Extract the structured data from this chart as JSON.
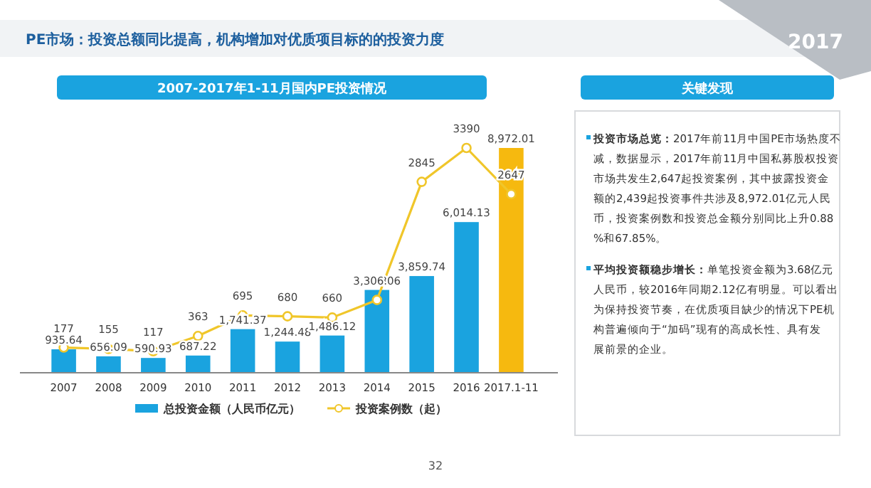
{
  "chart_data": [
    {
      "type": "bar",
      "title": "2007-2017年1-11月国内PE投资情况",
      "categories": [
        "2007",
        "2008",
        "2009",
        "2010",
        "2011",
        "2012",
        "2013",
        "2014",
        "2015",
        "2016",
        "2017.1-11"
      ],
      "series": [
        {
          "name": "总投资金额（人民币亿元）",
          "type": "bar",
          "colors": [
            "#1aa3df",
            "#1aa3df",
            "#1aa3df",
            "#1aa3df",
            "#1aa3df",
            "#1aa3df",
            "#1aa3df",
            "#1aa3df",
            "#1aa3df",
            "#1aa3df",
            "#f6b90f"
          ],
          "values": [
            935.64,
            656.09,
            590.93,
            687.22,
            1741.37,
            1244.48,
            1486.12,
            3306.06,
            3859.74,
            6014.13,
            8972.01
          ],
          "value_labels": [
            "935.64",
            "656.09",
            "590.93",
            "687.22",
            "1,741.37",
            "1,244.48",
            "1,486.12",
            "3,306.06",
            "3,859.74",
            "6,014.13",
            "8,972.01"
          ]
        },
        {
          "name": "投资案例数（起）",
          "type": "line",
          "axis": "y2",
          "color": "#f0c62a",
          "marker": "circle",
          "values": [
            177,
            155,
            117,
            363,
            695,
            680,
            660,
            943,
            2845,
            3390,
            2647
          ]
        }
      ],
      "data_labels": true,
      "legend": "bottom",
      "annotations": [
        "PE市场：投资总额同比提高，机构增加对优质项目标的的投资力度",
        "2017",
        "32"
      ]
    },
    {
      "type": "other",
      "title": "关键发现",
      "annotations": [
        "投资市场总览：2017年前11月中国PE市场热度不减，数据显示，2017年前11月中国私募股权投资市场共发生2,647起投资案例，其中披露投资金额的2,439起投资事件共涉及8,972.01亿元人民币，投资案例数和投资总金额分别同比上升0.88%和67.85%。",
        "平均投资额稳步增长：单笔投资金额为3.68亿元人民币，较2016年同期2.12亿有明显。可以看出为保持投资节奏，在优质项目缺少的情况下PE机构普遍倾向于“加码”现有的高成长性、具有发展前景的企业。"
      ]
    }
  ]
}
